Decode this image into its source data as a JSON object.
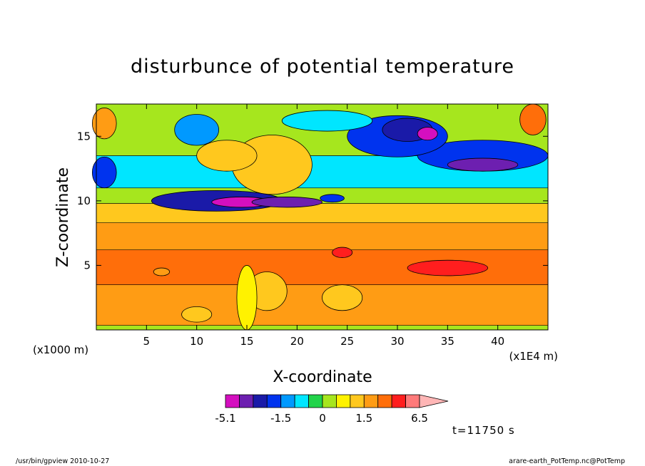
{
  "chart_data": {
    "type": "heatmap",
    "title": "disturbunce of potential temperature",
    "xlabel": "X-coordinate",
    "ylabel": "Z-coordinate",
    "x_unit": "(x1000 m)",
    "x_unit_right": "(x1E4 m)",
    "xlim": [
      0,
      45
    ],
    "ylim": [
      0,
      17.5
    ],
    "x_ticks": [
      5,
      10,
      15,
      20,
      25,
      30,
      35,
      40
    ],
    "y_ticks": [
      5,
      10,
      15
    ],
    "colorbar": {
      "colors": [
        "#d40fbf",
        "#6d1fb0",
        "#1a1aa8",
        "#0033ee",
        "#0099ff",
        "#00e6ff",
        "#22d44a",
        "#a6e61e",
        "#fff200",
        "#ffc81e",
        "#ff9c14",
        "#ff6e0a",
        "#ff1e1e",
        "#ff7a7a"
      ],
      "levels": [
        -5.1,
        -4.3,
        -3.5,
        -2.5,
        -1.5,
        -1.0,
        -0.5,
        0,
        0.5,
        1.0,
        1.5,
        2.5,
        4.0,
        5.0,
        6.5
      ],
      "labels": [
        "-5.1",
        "-1.5",
        "0",
        "1.5",
        "6.5"
      ],
      "extend": "max"
    },
    "bands": [
      {
        "z_min": 0.0,
        "z_max": 0.35,
        "value": 0.0
      },
      {
        "z_min": 0.35,
        "z_max": 3.5,
        "value": 2.0
      },
      {
        "z_min": 3.5,
        "z_max": 6.2,
        "value": 3.2
      },
      {
        "z_min": 6.2,
        "z_max": 8.3,
        "value": 2.0
      },
      {
        "z_min": 8.3,
        "z_max": 9.8,
        "value": 1.2
      },
      {
        "z_min": 9.8,
        "z_max": 11.0,
        "value": 0.3
      },
      {
        "z_min": 11.0,
        "z_max": 13.5,
        "value": -0.7
      },
      {
        "z_min": 13.5,
        "z_max": 17.5,
        "value": 0.3
      }
    ],
    "anomalies": [
      {
        "x": 12.0,
        "z": 10.0,
        "rx": 6.5,
        "rz": 0.8,
        "value": -3.0
      },
      {
        "x": 14.5,
        "z": 9.9,
        "rx": 3.0,
        "rz": 0.4,
        "value": -4.5
      },
      {
        "x": 19.0,
        "z": 9.9,
        "rx": 3.5,
        "rz": 0.4,
        "value": -4.0
      },
      {
        "x": 23.5,
        "z": 10.2,
        "rx": 1.2,
        "rz": 0.3,
        "value": -2.0
      },
      {
        "x": 38.5,
        "z": 13.5,
        "rx": 6.5,
        "rz": 1.2,
        "value": -2.2
      },
      {
        "x": 38.5,
        "z": 12.8,
        "rx": 3.5,
        "rz": 0.5,
        "value": -4.0
      },
      {
        "x": 0.8,
        "z": 12.2,
        "rx": 1.2,
        "rz": 1.2,
        "value": -2.0
      },
      {
        "x": 30.0,
        "z": 15.0,
        "rx": 5.0,
        "rz": 1.6,
        "value": -2.2
      },
      {
        "x": 31.0,
        "z": 15.5,
        "rx": 2.5,
        "rz": 0.9,
        "value": -3.5
      },
      {
        "x": 33.0,
        "z": 15.2,
        "rx": 1.0,
        "rz": 0.5,
        "value": -4.5
      },
      {
        "x": 23.0,
        "z": 16.2,
        "rx": 4.5,
        "rz": 0.8,
        "value": -1.0
      },
      {
        "x": 10.0,
        "z": 15.5,
        "rx": 2.2,
        "rz": 1.2,
        "value": -1.5
      },
      {
        "x": 17.5,
        "z": 12.8,
        "rx": 4.0,
        "rz": 2.3,
        "value": 1.2
      },
      {
        "x": 13.0,
        "z": 13.5,
        "rx": 3.0,
        "rz": 1.2,
        "value": 1.0
      },
      {
        "x": 0.8,
        "z": 16.0,
        "rx": 1.2,
        "rz": 1.2,
        "value": 2.0
      },
      {
        "x": 43.5,
        "z": 16.3,
        "rx": 1.3,
        "rz": 1.2,
        "value": 2.8
      },
      {
        "x": 35.0,
        "z": 4.8,
        "rx": 4.0,
        "rz": 0.6,
        "value": 4.5
      },
      {
        "x": 24.5,
        "z": 6.0,
        "rx": 1.0,
        "rz": 0.4,
        "value": 4.5
      },
      {
        "x": 6.5,
        "z": 4.5,
        "rx": 0.8,
        "rz": 0.3,
        "value": 2.2
      },
      {
        "x": 24.5,
        "z": 2.5,
        "rx": 2.0,
        "rz": 1.0,
        "value": 1.2
      },
      {
        "x": 17.0,
        "z": 3.0,
        "rx": 2.0,
        "rz": 1.5,
        "value": 1.2
      },
      {
        "x": 15.0,
        "z": 2.5,
        "rx": 1.0,
        "rz": 2.5,
        "value": 0.8
      },
      {
        "x": 10.0,
        "z": 1.2,
        "rx": 1.5,
        "rz": 0.6,
        "value": 1.0
      }
    ]
  },
  "time_label": "t=11750 s",
  "footer": {
    "left": "/usr/bin/gpview   2010-10-27",
    "right": "arare-earth_PotTemp.nc@PotTemp"
  }
}
